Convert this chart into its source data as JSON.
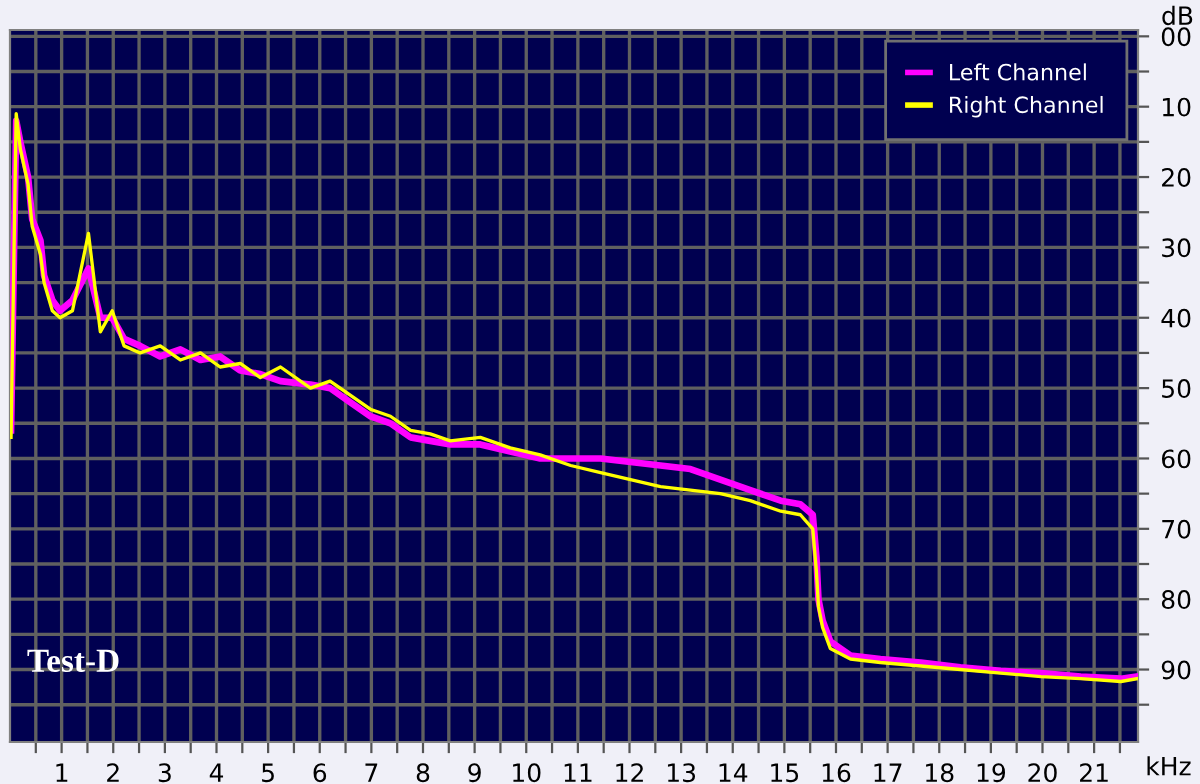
{
  "chart_data": {
    "type": "line",
    "xlabel": "kHz",
    "ylabel": "dB",
    "x": [
      0.02,
      0.12,
      0.2,
      0.35,
      0.43,
      0.59,
      0.66,
      0.82,
      0.97,
      1.21,
      1.52,
      1.75,
      1.98,
      2.21,
      2.52,
      2.91,
      3.3,
      3.69,
      4.07,
      4.46,
      4.85,
      5.24,
      5.82,
      6.2,
      6.59,
      6.98,
      7.37,
      7.76,
      8.14,
      8.53,
      9.11,
      9.69,
      10.27,
      10.86,
      11.44,
      12.02,
      12.6,
      13.18,
      13.76,
      14.34,
      14.93,
      15.31,
      15.55,
      15.62,
      15.66,
      15.74,
      15.89,
      16.28,
      16.86,
      17.64,
      18.41,
      19.19,
      19.97,
      20.74,
      21.52,
      21.83
    ],
    "series": [
      {
        "name": "Left Channel",
        "color": "#ff00ff",
        "values": [
          -56,
          -12,
          -15,
          -20,
          -26,
          -29,
          -34,
          -37.5,
          -39,
          -37.5,
          -33,
          -40,
          -40,
          -43,
          -44,
          -45.5,
          -44.5,
          -46,
          -45.5,
          -47.5,
          -48,
          -49,
          -49.5,
          -50,
          -52,
          -54,
          -55,
          -57,
          -57.5,
          -58,
          -58,
          -59,
          -60,
          -60,
          -60,
          -60.5,
          -61,
          -61.5,
          -63,
          -64.5,
          -66,
          -66.5,
          -68,
          -74,
          -80,
          -83,
          -86,
          -88,
          -88.5,
          -89,
          -89.7,
          -90.2,
          -90.5,
          -91,
          -91.3,
          -91
        ]
      },
      {
        "name": "Right Channel",
        "color": "#ffff00",
        "values": [
          -57,
          -11,
          -16,
          -21,
          -27,
          -31,
          -35,
          -39,
          -40,
          -39,
          -28,
          -42,
          -39,
          -44,
          -45,
          -44,
          -46,
          -45,
          -47,
          -46.5,
          -48.5,
          -47,
          -50,
          -49,
          -51,
          -53,
          -54,
          -56,
          -56.5,
          -57.5,
          -57,
          -58.5,
          -59.5,
          -61,
          -62,
          -63,
          -64,
          -64.5,
          -65,
          -66,
          -67.5,
          -68,
          -70,
          -76,
          -81,
          -84,
          -87,
          -88.5,
          -89,
          -89.5,
          -90,
          -90.5,
          -91,
          -91.3,
          -91.7,
          -91.3
        ]
      }
    ],
    "xlim": [
      0,
      21.85
    ],
    "xticks": [
      {
        "value": 0.5,
        "label": null
      },
      1,
      {
        "value": 1.5,
        "label": null
      },
      2,
      {
        "value": 2.5,
        "label": null
      },
      3,
      {
        "value": 3.5,
        "label": null
      },
      4,
      {
        "value": 4.5,
        "label": null
      },
      5,
      {
        "value": 5.5,
        "label": null
      },
      6,
      {
        "value": 6.5,
        "label": null
      },
      7,
      {
        "value": 7.5,
        "label": null
      },
      8,
      {
        "value": 8.5,
        "label": null
      },
      9,
      {
        "value": 9.5,
        "label": null
      },
      10,
      {
        "value": 10.5,
        "label": null
      },
      11,
      {
        "value": 11.5,
        "label": null
      },
      12,
      {
        "value": 12.5,
        "label": null
      },
      13,
      {
        "value": 13.5,
        "label": null
      },
      14,
      {
        "value": 14.5,
        "label": null
      },
      15,
      {
        "value": 15.5,
        "label": null
      },
      16,
      {
        "value": 16.5,
        "label": null
      },
      17,
      {
        "value": 17.5,
        "label": null
      },
      18,
      {
        "value": 18.5,
        "label": null
      },
      19,
      {
        "value": 19.5,
        "label": null
      },
      20,
      {
        "value": 20.5,
        "label": null
      },
      21,
      {
        "value": 21.5,
        "label": null
      }
    ],
    "ylim": [
      -100.3,
      0.9
    ],
    "yticks": [
      {
        "value": 0,
        "label": "00"
      },
      {
        "value": -5,
        "label": null
      },
      {
        "value": -10,
        "label": "10"
      },
      {
        "value": -15,
        "label": null
      },
      {
        "value": -20,
        "label": "20"
      },
      {
        "value": -25,
        "label": null
      },
      {
        "value": -30,
        "label": "30"
      },
      {
        "value": -35,
        "label": null
      },
      {
        "value": -40,
        "label": "40"
      },
      {
        "value": -45,
        "label": null
      },
      {
        "value": -50,
        "label": "50"
      },
      {
        "value": -55,
        "label": null
      },
      {
        "value": -60,
        "label": "60"
      },
      {
        "value": -65,
        "label": null
      },
      {
        "value": -70,
        "label": "70"
      },
      {
        "value": -75,
        "label": null
      },
      {
        "value": -80,
        "label": "80"
      },
      {
        "value": -85,
        "label": null
      },
      {
        "value": -90,
        "label": "90"
      },
      {
        "value": -95,
        "label": null
      }
    ],
    "grid": true,
    "legend": "top right",
    "line_style": "solid",
    "annotations": [
      "Test-D"
    ]
  }
}
